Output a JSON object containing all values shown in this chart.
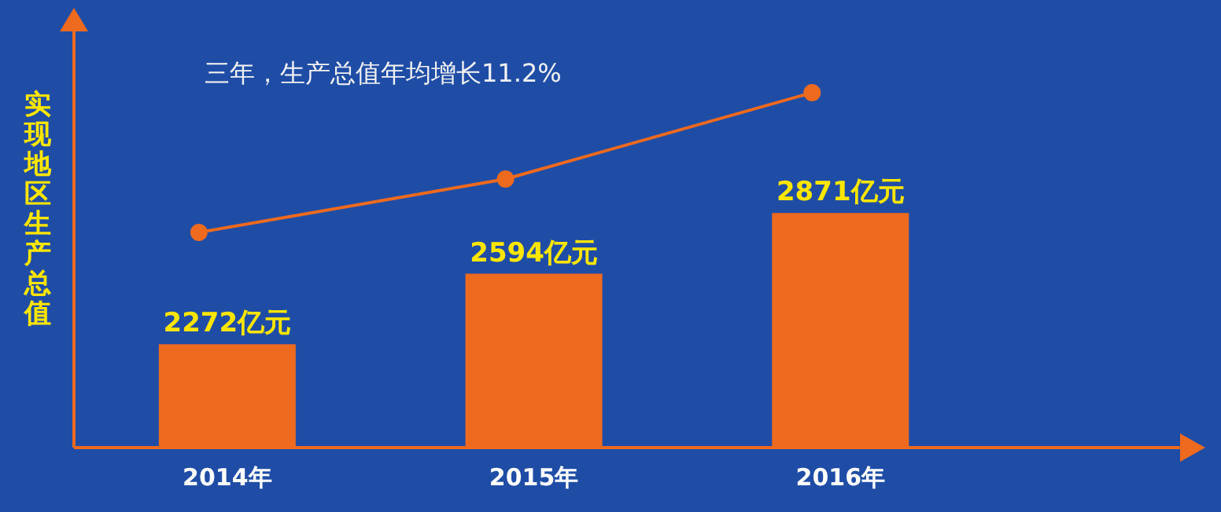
{
  "chart_data": {
    "type": "bar",
    "title": "三年，生产总值年均增长11.2%",
    "ylabel": "实现地区生产总值",
    "categories": [
      "2014年",
      "2015年",
      "2016年"
    ],
    "ylim": [
      1800,
      3700
    ],
    "series": [
      {
        "color": "#ee6a1f",
        "values": [
          2272,
          2594,
          2871
        ],
        "value_labels": [
          "2272亿元",
          "2594亿元",
          "2871亿元"
        ]
      }
    ]
  }
}
